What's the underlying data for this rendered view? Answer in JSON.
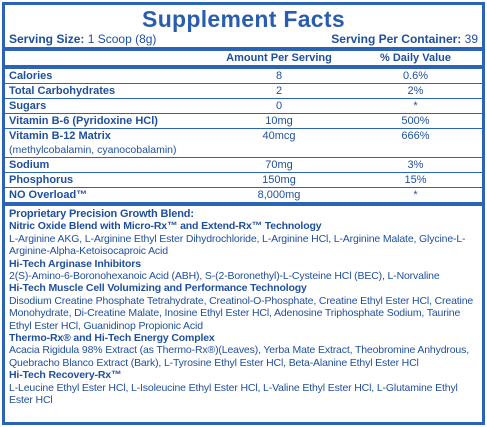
{
  "title": "Supplement Facts",
  "serving_size": {
    "label": "Serving Size:",
    "value": "1 Scoop (8g)"
  },
  "servings_per_container": {
    "label": "Serving Per Container:",
    "value": "39"
  },
  "table": {
    "columns": [
      "Amount Per Serving",
      "% Daily Value"
    ],
    "rows": [
      {
        "name": "Calories",
        "amount": "8",
        "dv": "0.6%"
      },
      {
        "name": "Total Carbohydrates",
        "amount": "2",
        "dv": "2%"
      },
      {
        "name": "Sugars",
        "amount": "0",
        "dv": "*"
      },
      {
        "name": "Vitamin B-6 (Pyridoxine HCl)",
        "amount": "10mg",
        "dv": "500%"
      },
      {
        "name": "Vitamin B-12 Matrix",
        "note": "(methylcobalamin, cyanocobalamin)",
        "amount": "40mcg",
        "dv": "666%"
      },
      {
        "name": "Sodium",
        "amount": "70mg",
        "dv": "3%"
      },
      {
        "name": "Phosphorus",
        "amount": "150mg",
        "dv": "15%"
      },
      {
        "name": "NO Overload™",
        "amount": "8,000mg",
        "dv": "*"
      }
    ]
  },
  "blend": {
    "title": "Proprietary Precision Growth Blend:",
    "sections": [
      {
        "heading": "Nitric Oxide Blend with Micro-Rx™ and Extend-Rx™ Technology",
        "text": "L-Arginine AKG, L-Arginine Ethyl Ester Dihydrochloride, L-Arginine HCl, L-Arginine Malate, Glycine-L-Arginine-Alpha-Ketoisocaproic Acid"
      },
      {
        "heading": "Hi-Tech Arginase Inhibitors",
        "text": "2(S)-Amino-6-Boronohexanoic Acid (ABH), S-(2-Boronethyl)-L-Cysteine HCl (BEC), L-Norvaline"
      },
      {
        "heading": "Hi-Tech Muscle Cell Volumizing and Performance Technology",
        "text": "Disodium Creatine Phosphate Tetrahydrate, Creatinol-O-Phosphate, Creatine Ethyl Ester HCl, Creatine Monohydrate, Di-Creatine Malate, Inosine Ethyl Ester HCl, Adenosine Triphosphate Sodium, Taurine Ethyl Ester HCl, Guanidinop Propionic Acid"
      },
      {
        "heading": "Thermo-Rx® and Hi-Tech Energy Complex",
        "text": "Acacia Rigidula 98% Extract (as Thermo-Rx®)(Leaves), Yerba Mate Extract, Theobromine Anhydrous, Quebracho Blanco Extract (Bark), L-Tyrosine Ethyl Ester HCl, Beta-Alanine Ethyl Ester HCl"
      },
      {
        "heading": "Hi-Tech Recovery-Rx™",
        "text": "L-Leucine Ethyl Ester HCl, L-Isoleucine Ethyl Ester HCl, L-Valine Ethyl Ester HCl, L-Glutamine Ethyl Ester HCl"
      }
    ]
  }
}
